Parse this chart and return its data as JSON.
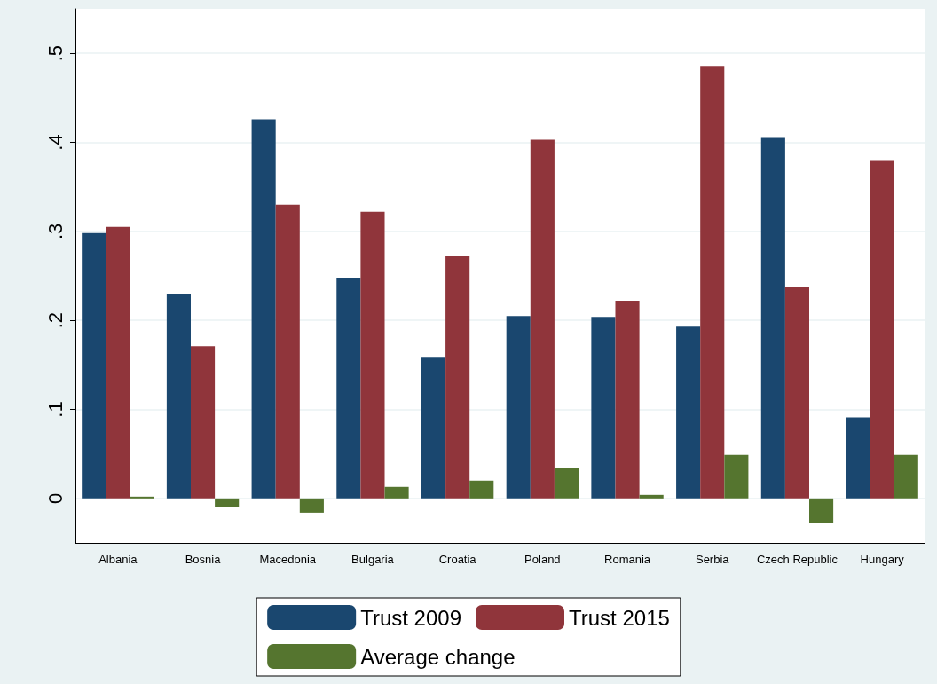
{
  "chart_data": {
    "type": "bar",
    "categories": [
      "Albania",
      "Bosnia",
      "Macedonia",
      "Bulgaria",
      "Croatia",
      "Poland",
      "Romania",
      "Serbia",
      "Czech Republic",
      "Hungary"
    ],
    "series": [
      {
        "name": "Trust 2009",
        "color": "#1a476f",
        "values": [
          0.298,
          0.23,
          0.426,
          0.248,
          0.159,
          0.205,
          0.204,
          0.193,
          0.406,
          0.091
        ]
      },
      {
        "name": "Trust 2015",
        "color": "#90353b",
        "values": [
          0.305,
          0.171,
          0.33,
          0.322,
          0.273,
          0.403,
          0.222,
          0.486,
          0.238,
          0.38
        ]
      },
      {
        "name": "Average change",
        "color": "#55752f",
        "values": [
          0.002,
          -0.01,
          -0.016,
          0.013,
          0.02,
          0.034,
          0.004,
          0.049,
          -0.028,
          0.049
        ]
      }
    ],
    "ylim": [
      -0.05,
      0.55
    ],
    "yticks": [
      {
        "value": 0,
        "label": "0"
      },
      {
        "value": 0.1,
        "label": ".1"
      },
      {
        "value": 0.2,
        "label": ".2"
      },
      {
        "value": 0.3,
        "label": ".3"
      },
      {
        "value": 0.4,
        "label": ".4"
      },
      {
        "value": 0.5,
        "label": ".5"
      }
    ],
    "grid": "y",
    "legend": "bottom"
  }
}
